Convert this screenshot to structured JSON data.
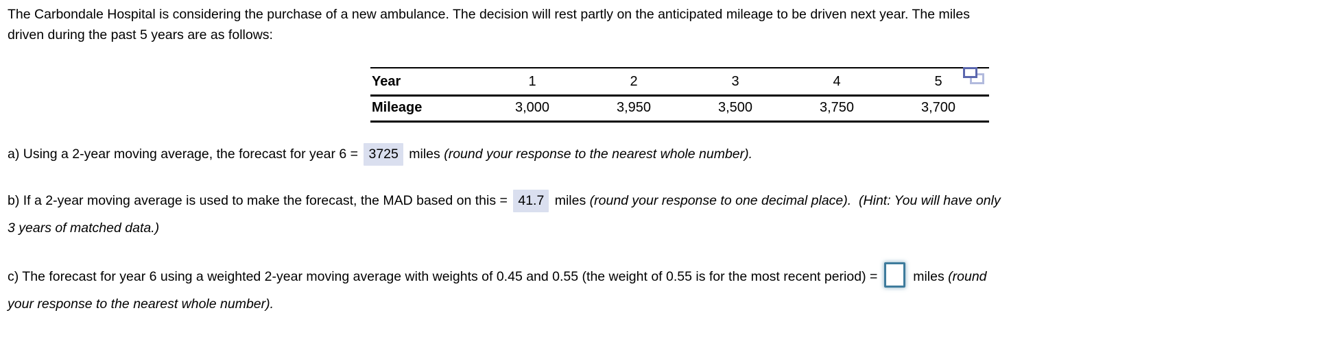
{
  "intro": {
    "line1": "The Carbondale Hospital is considering the purchase of a new ambulance. The decision will rest partly on the anticipated mileage to be driven next year. The miles",
    "line2": "driven during the past 5 years are as follows:"
  },
  "table": {
    "header_label": "Year",
    "row_label": "Mileage",
    "years": [
      "1",
      "2",
      "3",
      "4",
      "5"
    ],
    "mileage": [
      "3,000",
      "3,950",
      "3,500",
      "3,750",
      "3,700"
    ],
    "popout_icon": "popout-icon"
  },
  "questions": {
    "a": {
      "lines": [
        [
          {
            "style": "normal",
            "text": "a) Using a 2-year moving average, the forecast for year 6 = "
          },
          {
            "style": "answer",
            "text": "3725"
          },
          {
            "style": "normal",
            "text": " miles "
          },
          {
            "style": "italic",
            "text": "(round your response to the nearest whole number)."
          }
        ]
      ]
    },
    "b": {
      "lines": [
        [
          {
            "style": "normal",
            "text": "b) If a 2-year moving average is used to make the forecast, the MAD based on this = "
          },
          {
            "style": "answer",
            "text": "41.7"
          },
          {
            "style": "normal",
            "text": " miles "
          },
          {
            "style": "italic",
            "text": "(round your response to one decimal place)."
          },
          {
            "style": "normal",
            "text": "  "
          },
          {
            "style": "italic",
            "text": "(Hint: You will have only"
          }
        ],
        [
          {
            "style": "italic",
            "text": "3 years of matched data.)"
          }
        ]
      ]
    },
    "c": {
      "lines": [
        [
          {
            "style": "normal",
            "text": "c) The forecast for year 6 using a weighted 2-year moving average with weights of 0.45 and 0.55 (the weight of 0.55 is for the most recent period) = "
          },
          {
            "style": "input",
            "text": ""
          },
          {
            "style": "normal",
            "text": " miles "
          },
          {
            "style": "italic",
            "text": "(round"
          }
        ],
        [
          {
            "style": "italic",
            "text": "your response to the nearest whole number)."
          }
        ]
      ]
    }
  },
  "colors": {
    "answer_highlight": "#dadfef",
    "input_border": "#3e7b9c",
    "icon_front": "#5b67ae",
    "icon_back": "#b2badd"
  }
}
